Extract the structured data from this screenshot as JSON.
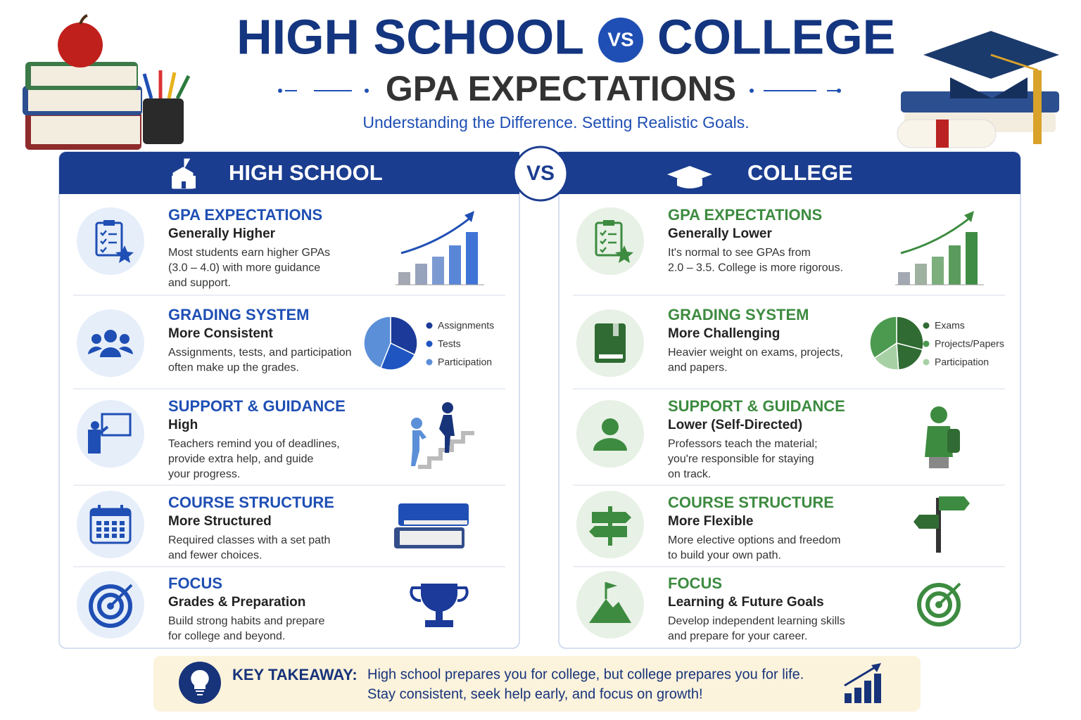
{
  "header": {
    "title_left": "HIGH SCHOOL",
    "vs": "VS",
    "title_right": "COLLEGE",
    "subtitle": "GPA EXPECTATIONS",
    "tagline": "Understanding the Difference. Setting Realistic Goals."
  },
  "center_vs": "VS",
  "columns": [
    {
      "heading": "HIGH SCHOOL",
      "sections": [
        {
          "title": "GPA EXPECTATIONS",
          "level": "Generally Higher",
          "text": [
            "Most students earn higher GPAs",
            "(3.0 – 4.0) with more guidance",
            "and support."
          ]
        },
        {
          "title": "GRADING SYSTEM",
          "level": "More Consistent",
          "text": [
            "Assignments, tests, and participation",
            "often make up the grades."
          ],
          "legend": [
            "Assignments",
            "Tests",
            "Participation"
          ]
        },
        {
          "title": "SUPPORT & GUIDANCE",
          "level": "High",
          "text": [
            "Teachers remind you of deadlines,",
            "provide extra help, and guide",
            "your progress."
          ]
        },
        {
          "title": "COURSE STRUCTURE",
          "level": "More Structured",
          "text": [
            "Required classes with a set path",
            "and fewer choices."
          ]
        },
        {
          "title": "FOCUS",
          "level": "Grades & Preparation",
          "text": [
            "Build strong habits and prepare",
            "for college and beyond."
          ]
        }
      ]
    },
    {
      "heading": "COLLEGE",
      "sections": [
        {
          "title": "GPA EXPECTATIONS",
          "level": "Generally Lower",
          "text": [
            "It's normal to see GPAs from",
            "2.0 – 3.5. College is more rigorous."
          ]
        },
        {
          "title": "GRADING SYSTEM",
          "level": "More Challenging",
          "text": [
            "Heavier weight on exams, projects,",
            "and papers."
          ],
          "legend": [
            "Exams",
            "Projects/Papers",
            "Participation"
          ]
        },
        {
          "title": "SUPPORT & GUIDANCE",
          "level": "Lower (Self-Directed)",
          "text": [
            "Professors teach the material;",
            "you're responsible for staying",
            "on track."
          ]
        },
        {
          "title": "COURSE STRUCTURE",
          "level": "More Flexible",
          "text": [
            "More elective options and freedom",
            "to build your own path."
          ]
        },
        {
          "title": "FOCUS",
          "level": "Learning & Future Goals",
          "text": [
            "Develop independent learning skills",
            "and prepare for your career."
          ]
        }
      ]
    }
  ],
  "takeaway": {
    "label": "KEY TAKEAWAY:",
    "lines": [
      "High school prepares you for college, but college prepares you for life.",
      "Stay consistent, seek help early, and focus on growth!"
    ]
  }
}
